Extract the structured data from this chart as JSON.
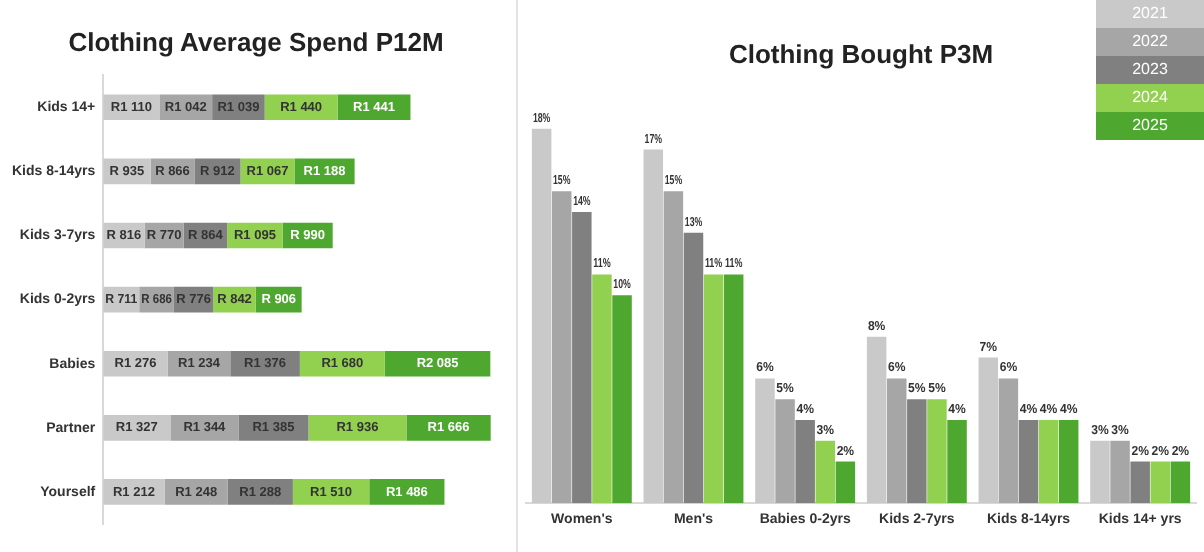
{
  "chart_data": [
    {
      "type": "bar",
      "title": "Clothing Average Spend P12M",
      "orientation": "horizontal",
      "stacked": true,
      "legend": false,
      "grid": false,
      "categories": [
        "Kids 14+",
        "Kids 8-14yrs",
        "Kids 3-7yrs",
        "Kids 0-2yrs",
        "Babies",
        "Partner",
        "Yourself"
      ],
      "series": [
        {
          "color": "#c9c9c9",
          "values": [
            1110,
            935,
            816,
            711,
            1276,
            1327,
            1212
          ],
          "value_labels": [
            "R1 110",
            "R 935",
            "R 816",
            "R 711",
            "R1 276",
            "R1 327",
            "R1 212"
          ]
        },
        {
          "color": "#a6a6a6",
          "values": [
            1042,
            866,
            770,
            686,
            1234,
            1344,
            1248
          ],
          "value_labels": [
            "R1 042",
            "R 866",
            "R 770",
            "R 686",
            "R1 234",
            "R1 344",
            "R1 248"
          ]
        },
        {
          "color": "#808080",
          "values": [
            1039,
            912,
            864,
            776,
            1376,
            1385,
            1288
          ],
          "value_labels": [
            "R1 039",
            "R 912",
            "R 864",
            "R 776",
            "R1 376",
            "R1 385",
            "R1 288"
          ]
        },
        {
          "color": "#92d050",
          "values": [
            1440,
            1067,
            1095,
            842,
            1680,
            1936,
            1510
          ],
          "value_labels": [
            "R1 440",
            "R1 067",
            "R1 095",
            "R 842",
            "R1 680",
            "R1 936",
            "R1 510"
          ]
        },
        {
          "color": "#4ea72e",
          "values": [
            1441,
            1188,
            990,
            906,
            2085,
            1666,
            1486
          ],
          "value_labels": [
            "R1 441",
            "R1 188",
            "R 990",
            "R 906",
            "R2 085",
            "R1 666",
            "R1 486"
          ]
        }
      ]
    },
    {
      "type": "bar",
      "title": "Clothing Bought P3M",
      "legend": "top right",
      "grid": false,
      "categories": [
        "Women's",
        "Men's",
        "Babies 0-2yrs",
        "Kids 2-7yrs",
        "Kids 8-14yrs",
        "Kids 14+ yrs"
      ],
      "series": [
        {
          "name": "2021",
          "color": "#c9c9c9",
          "values": [
            18,
            17,
            6,
            8,
            7,
            3
          ],
          "value_labels": [
            "18%",
            "17%",
            "6%",
            "8%",
            "7%",
            "3%"
          ]
        },
        {
          "name": "2022",
          "color": "#a6a6a6",
          "values": [
            15,
            15,
            5,
            6,
            6,
            3
          ],
          "value_labels": [
            "15%",
            "15%",
            "5%",
            "6%",
            "6%",
            "3%"
          ]
        },
        {
          "name": "2023",
          "color": "#808080",
          "values": [
            14,
            13,
            4,
            5,
            4,
            2
          ],
          "value_labels": [
            "14%",
            "13%",
            "4%",
            "5%",
            "4%",
            "2%"
          ]
        },
        {
          "name": "2024",
          "color": "#92d050",
          "values": [
            11,
            11,
            3,
            5,
            4,
            2
          ],
          "value_labels": [
            "11%",
            "11%",
            "3%",
            "5%",
            "4%",
            "2%"
          ]
        },
        {
          "name": "2025",
          "color": "#4ea72e",
          "values": [
            10,
            11,
            2,
            4,
            4,
            2
          ],
          "value_labels": [
            "10%",
            "11%",
            "2%",
            "4%",
            "4%",
            "2%"
          ]
        }
      ]
    }
  ]
}
